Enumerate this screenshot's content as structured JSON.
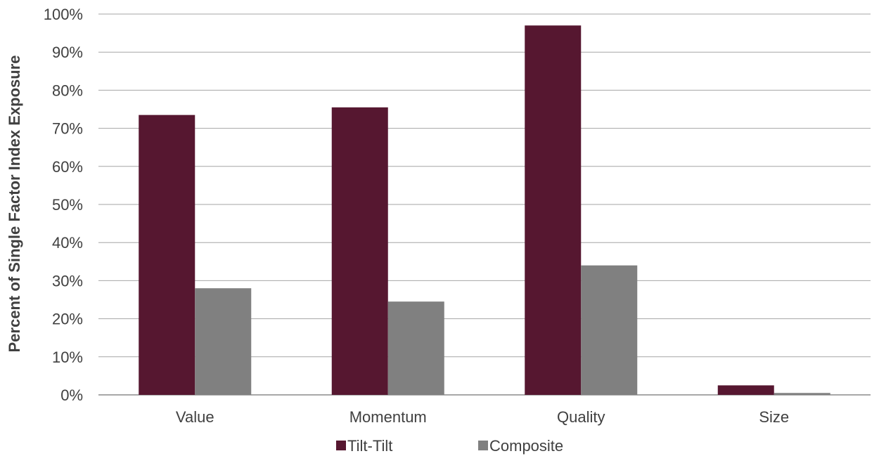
{
  "chart_data": {
    "type": "bar",
    "title": "",
    "xlabel": "",
    "ylabel": "Percent of Single Factor Index Exposure",
    "categories": [
      "Value",
      "Momentum",
      "Quality",
      "Size"
    ],
    "series": [
      {
        "name": "Tilt-Tilt",
        "color": "#561730",
        "values": [
          73.5,
          75.5,
          97,
          2.5
        ]
      },
      {
        "name": "Composite",
        "color": "#808080",
        "values": [
          28,
          24.5,
          34,
          0.5
        ]
      }
    ],
    "ylim": [
      0,
      100
    ],
    "yticks": [
      "0%",
      "10%",
      "20%",
      "30%",
      "40%",
      "50%",
      "60%",
      "70%",
      "80%",
      "90%",
      "100%"
    ],
    "grid": true,
    "legend": "bottom"
  }
}
